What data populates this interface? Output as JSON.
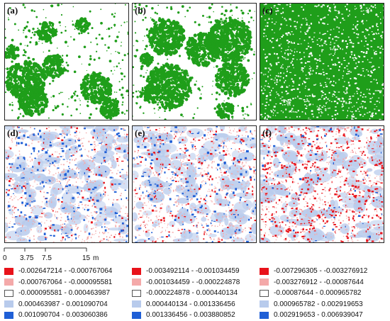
{
  "panels": [
    {
      "id": "a",
      "label": "(a)",
      "kind": "green",
      "density": 0.22,
      "colors": {
        "fg": "#1f9e1a"
      }
    },
    {
      "id": "b",
      "label": "(b)",
      "kind": "green-blobs",
      "density": 0.18,
      "colors": {
        "fg": "#1f9e1a"
      }
    },
    {
      "id": "c",
      "label": "(c)",
      "kind": "green",
      "density": 0.8,
      "colors": {
        "fg": "#1f9e1a"
      }
    },
    {
      "id": "d",
      "label": "(d)",
      "kind": "diff",
      "bias": "blue"
    },
    {
      "id": "e",
      "label": "(e)",
      "kind": "diff",
      "bias": "mixed"
    },
    {
      "id": "f",
      "label": "(f)",
      "kind": "diff",
      "bias": "red"
    }
  ],
  "scale": {
    "ticks": [
      "0",
      "3.75",
      "7.5",
      "15"
    ],
    "unit": "m"
  },
  "legend_colors": [
    "#e8121a",
    "#f4a9a9",
    "#ffffff",
    "#b8cbec",
    "#1f5fd6"
  ],
  "legends": [
    [
      "-0.002647214 - -0.000767064",
      "-0.000767064 - -0.000095581",
      "-0.000095581 - 0.000463987",
      "0.000463987 - 0.001090704",
      "0.001090704 - 0.003060386"
    ],
    [
      "-0.003492114 - -0.001034459",
      "-0.001034459 - -0.000224878",
      "-0.000224878 - 0.000440134",
      "0.000440134 - 0.001336456",
      "0.001336456 - 0.003880852"
    ],
    [
      "-0.007296305 - -0.003276912",
      "-0.003276912 - -0.00087644",
      "-0.00087644 - 0.000965782",
      "0.000965782 - 0.002919653",
      "0.002919653 - 0.006939047"
    ]
  ]
}
